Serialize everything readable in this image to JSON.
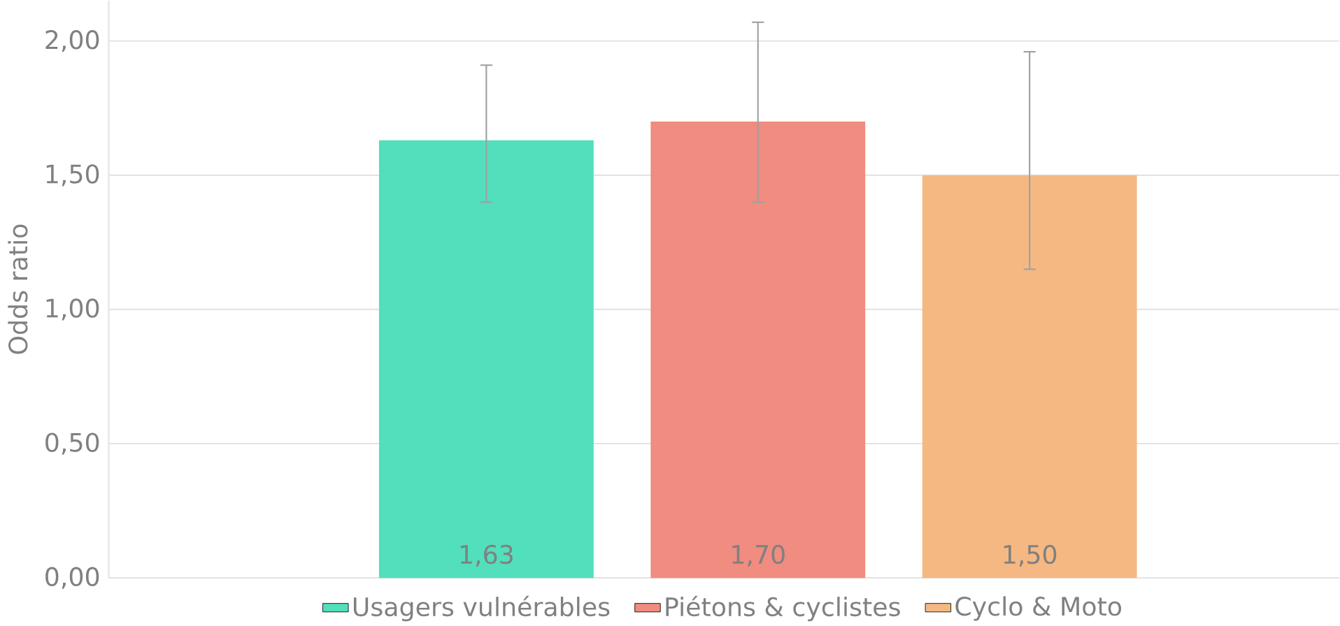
{
  "chart_data": {
    "type": "bar",
    "ylabel": "Odds ratio",
    "categories": [
      null
    ],
    "series": [
      {
        "name": "Usagers vulnérables",
        "color": "#52dfbb",
        "values": [
          1.63
        ],
        "errors": [
          [
            1.4,
            1.91
          ]
        ],
        "value_labels": [
          "1,63"
        ]
      },
      {
        "name": "Piétons & cyclistes",
        "color": "#f08c80",
        "values": [
          1.7
        ],
        "errors": [
          [
            1.4,
            2.07
          ]
        ],
        "value_labels": [
          "1,70"
        ]
      },
      {
        "name": "Cyclo & Moto",
        "color": "#f5b883",
        "values": [
          1.5
        ],
        "errors": [
          [
            1.15,
            1.96
          ]
        ],
        "value_labels": [
          "1,50"
        ]
      }
    ],
    "ylim": [
      0,
      2.15
    ],
    "yticks": [
      {
        "value": 0,
        "label": "0,00"
      },
      {
        "value": 0.5,
        "label": "0,50"
      },
      {
        "value": 1,
        "label": "1,00"
      },
      {
        "value": 1.5,
        "label": "1,50"
      },
      {
        "value": 2,
        "label": "2,00"
      }
    ],
    "grid": "y",
    "legend": "bottom"
  }
}
